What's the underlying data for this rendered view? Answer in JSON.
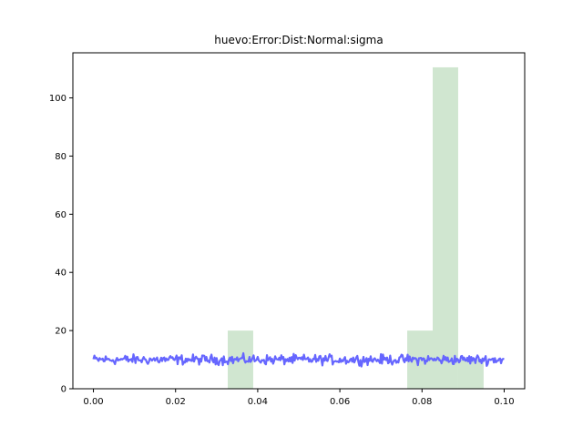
{
  "chart_data": {
    "type": "bar",
    "title": "huevo:Error:Dist:Normal:sigma",
    "xlabel": "",
    "ylabel": "",
    "xlim": [
      -0.005,
      0.105
    ],
    "ylim": [
      0,
      115.5
    ],
    "x_ticks": [
      0.0,
      0.02,
      0.04,
      0.06,
      0.08,
      0.1
    ],
    "x_tick_labels": [
      "0.00",
      "0.02",
      "0.04",
      "0.06",
      "0.08",
      "0.10"
    ],
    "y_ticks": [
      0,
      20,
      40,
      60,
      80,
      100
    ],
    "y_tick_labels": [
      "0",
      "20",
      "40",
      "60",
      "80",
      "100"
    ],
    "grid": false,
    "histogram": {
      "color": "#d0e6d0",
      "bins": [
        {
          "x0": 0.0327,
          "x1": 0.0389,
          "value": 20
        },
        {
          "x0": 0.0764,
          "x1": 0.0826,
          "value": 20
        },
        {
          "x0": 0.0826,
          "x1": 0.0888,
          "value": 110.5
        },
        {
          "x0": 0.0888,
          "x1": 0.095,
          "value": 10
        }
      ]
    },
    "line": {
      "color": "#6666ff",
      "x_start": 0.0,
      "x_end": 0.1,
      "mean": 10,
      "noise_amplitude": 1.5,
      "points": 400
    }
  }
}
